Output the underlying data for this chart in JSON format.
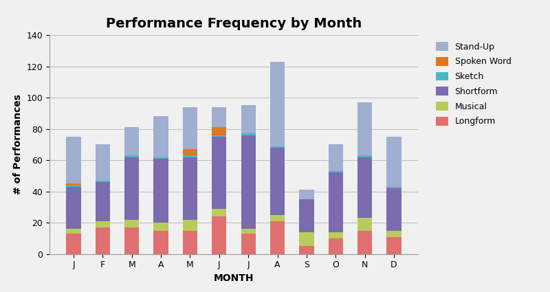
{
  "months": [
    "J",
    "F",
    "M",
    "A",
    "M",
    "J",
    "J",
    "A",
    "S",
    "O",
    "N",
    "D"
  ],
  "title": "Performance Frequency by Month",
  "xlabel": "MONTH",
  "ylabel": "# of Performances",
  "ylim": [
    0,
    140
  ],
  "yticks": [
    0,
    20,
    40,
    60,
    80,
    100,
    120,
    140
  ],
  "categories": [
    "Longform",
    "Musical",
    "Shortform",
    "Sketch",
    "Spoken Word",
    "Stand-Up"
  ],
  "colors": {
    "Longform": "#e07070",
    "Musical": "#b8cc5a",
    "Shortform": "#7b6baf",
    "Sketch": "#4ab8c4",
    "Spoken Word": "#e07820",
    "Stand-Up": "#a0aed0"
  },
  "data": {
    "Longform": [
      13,
      17,
      17,
      15,
      15,
      24,
      13,
      21,
      5,
      10,
      15,
      11
    ],
    "Musical": [
      3,
      4,
      5,
      5,
      7,
      5,
      3,
      4,
      9,
      4,
      8,
      4
    ],
    "Shortform": [
      27,
      25,
      40,
      41,
      40,
      46,
      60,
      43,
      21,
      38,
      39,
      27
    ],
    "Sketch": [
      1,
      1,
      1,
      1,
      1,
      1,
      1,
      1,
      0,
      1,
      1,
      1
    ],
    "Spoken Word": [
      1,
      0,
      0,
      0,
      4,
      5,
      0,
      0,
      0,
      0,
      0,
      0
    ],
    "Stand-Up": [
      30,
      23,
      18,
      26,
      27,
      13,
      18,
      54,
      6,
      17,
      34,
      32
    ]
  },
  "fig_width": 8.0,
  "fig_height": 4.25,
  "dpi": 100,
  "bg_color": "#f0f0f0",
  "plot_bg_color": "#f0f0f0",
  "title_fontsize": 14,
  "axis_label_fontsize": 10,
  "tick_fontsize": 9,
  "legend_fontsize": 9,
  "bar_width": 0.5
}
